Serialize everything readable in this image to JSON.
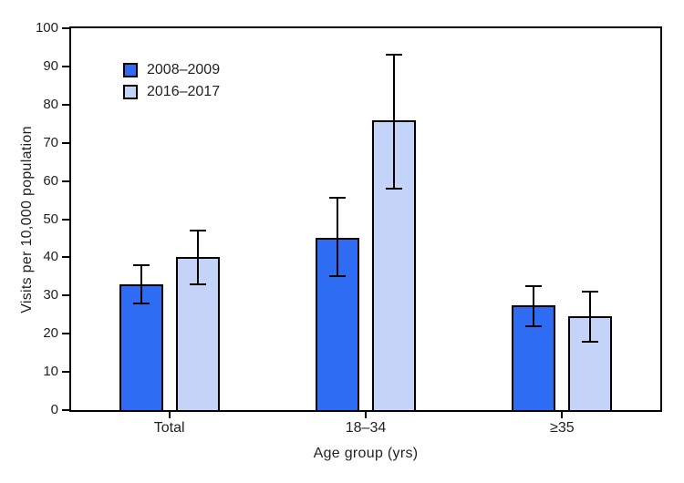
{
  "figure": {
    "background": "#ffffff",
    "text_color": "#231f20",
    "axis_color": "#000000"
  },
  "chart_data": {
    "type": "bar",
    "title": "",
    "xlabel": "Age group (yrs)",
    "ylabel": "Visits per 10,000 population",
    "categories": [
      "Total",
      "18–34",
      "≥35"
    ],
    "series": [
      {
        "name": "2008–2009",
        "color": "#2e6cf3",
        "values": [
          33,
          45,
          27.5
        ],
        "ci_low": [
          28,
          35,
          22
        ],
        "ci_high": [
          38,
          55.5,
          32.5
        ]
      },
      {
        "name": "2016–2017",
        "color": "#c3d4f8",
        "values": [
          40,
          76,
          24.5
        ],
        "ci_low": [
          33,
          58,
          18
        ],
        "ci_high": [
          47,
          93,
          31
        ]
      }
    ],
    "ylim": [
      0,
      100
    ],
    "ytick_step": 10,
    "error_bars": true,
    "grid": false,
    "legend_position": "top-left-inside",
    "bar_edge_color": "#000000"
  }
}
